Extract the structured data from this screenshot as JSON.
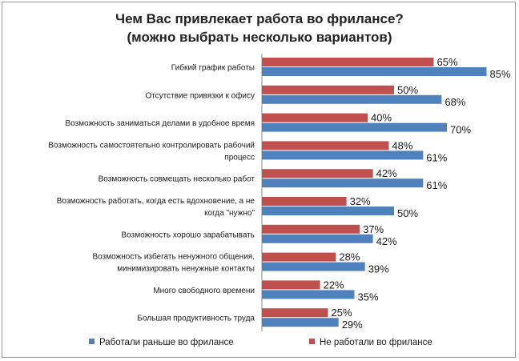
{
  "chart_data": {
    "type": "bar",
    "orientation": "horizontal",
    "title": "Чем Вас привлекает работа во фрилансе? (можно выбрать несколько вариантов)",
    "title_lines": [
      "Чем Вас привлекает работа во фрилансе?",
      "(можно выбрать несколько вариантов)"
    ],
    "categories": [
      [
        "Гибкий график работы"
      ],
      [
        "Отсутствие привязки к офису"
      ],
      [
        "Возможность заниматься делами в удобное время"
      ],
      [
        "Возможность самостоятельно контролировать рабочий",
        "процесс"
      ],
      [
        "Возможность совмещать несколько работ"
      ],
      [
        "Возможность работать, когда есть вдохновение, а не",
        "когда \"нужно\""
      ],
      [
        "Возможность хорошо зарабатывать"
      ],
      [
        "Возможность избегать ненужного общения,",
        "минимизировать ненужные контакты"
      ],
      [
        "Много свободного времени"
      ],
      [
        "Большая продуктивность труда"
      ]
    ],
    "series": [
      {
        "name": "Не работали во фрилансе",
        "color": "#c0504d",
        "values": [
          65,
          50,
          40,
          48,
          42,
          32,
          37,
          28,
          22,
          25
        ]
      },
      {
        "name": "Работали раньше во фрилансе",
        "color": "#4f81bd",
        "values": [
          85,
          68,
          70,
          61,
          61,
          50,
          42,
          39,
          35,
          29
        ]
      }
    ],
    "value_suffix": "%",
    "xlim": [
      0,
      100
    ],
    "grid": false,
    "legend": [
      "Работали раньше во фрилансе",
      "Не работали во фрилансе"
    ],
    "legend_position": "bottom"
  }
}
